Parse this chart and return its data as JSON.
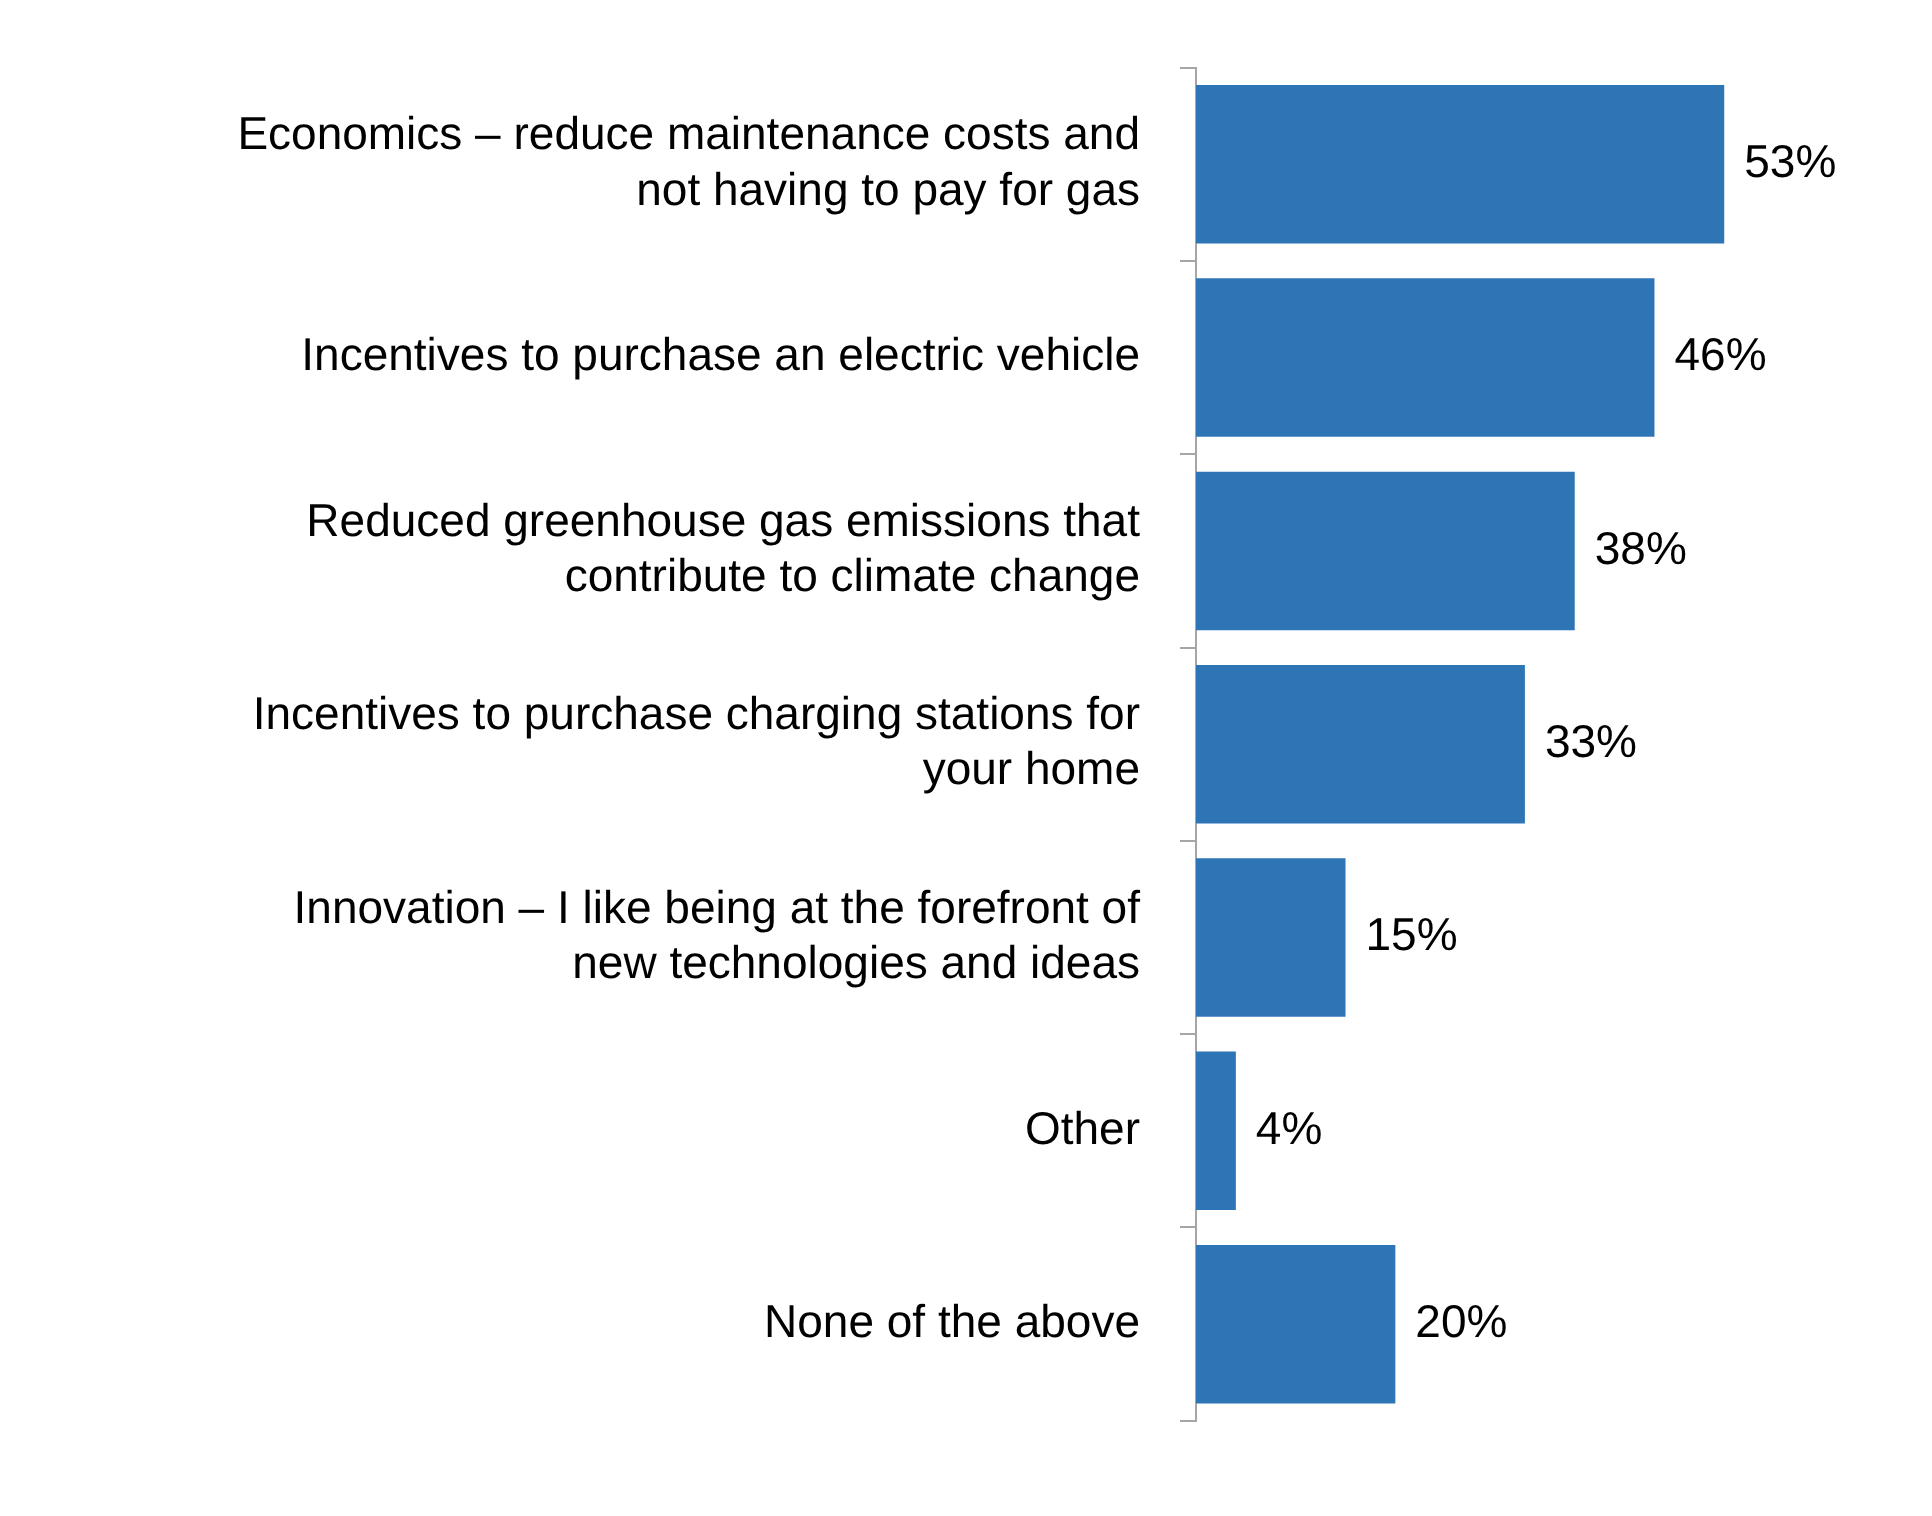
{
  "chart_data": {
    "type": "bar",
    "orientation": "horizontal",
    "categories": [
      "Economics – reduce maintenance costs and not having to pay for gas",
      "Incentives to purchase an electric vehicle",
      "Reduced greenhouse gas emissions that contribute to climate change",
      "Incentives to purchase charging stations for your home",
      "Innovation – I like being at the forefront of new technologies and ideas",
      "Other",
      "None of the above"
    ],
    "values": [
      53,
      46,
      38,
      33,
      15,
      4,
      20
    ],
    "value_labels": [
      "53%",
      "46%",
      "38%",
      "33%",
      "15%",
      "4%",
      "20%"
    ],
    "color": "#2e75b6",
    "tick_labels": "y"
  }
}
